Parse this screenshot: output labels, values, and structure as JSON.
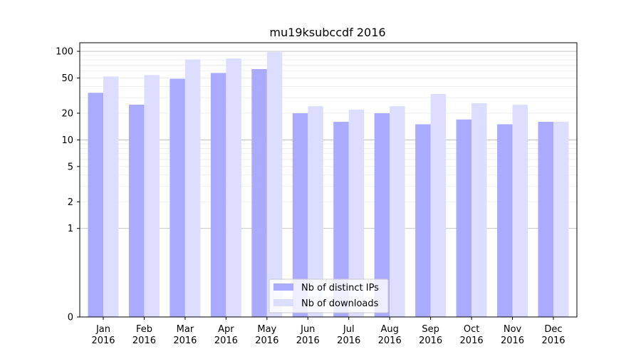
{
  "chart_data": {
    "type": "bar",
    "title": "mu19ksubccdf 2016",
    "xlabel": "",
    "ylabel": "",
    "yscale": "symlog",
    "yticks": [
      0,
      1,
      2,
      5,
      10,
      20,
      50,
      100
    ],
    "ytick_labels": [
      "0",
      "1",
      "2",
      "5",
      "10",
      "20",
      "50",
      "100"
    ],
    "ylim": [
      0,
      125
    ],
    "grid": "horizontal",
    "legend_position": "bottom-center",
    "categories": [
      [
        "Jan",
        "2016"
      ],
      [
        "Feb",
        "2016"
      ],
      [
        "Mar",
        "2016"
      ],
      [
        "Apr",
        "2016"
      ],
      [
        "May",
        "2016"
      ],
      [
        "Jun",
        "2016"
      ],
      [
        "Jul",
        "2016"
      ],
      [
        "Aug",
        "2016"
      ],
      [
        "Sep",
        "2016"
      ],
      [
        "Oct",
        "2016"
      ],
      [
        "Nov",
        "2016"
      ],
      [
        "Dec",
        "2016"
      ]
    ],
    "series": [
      {
        "name": "Nb of distinct IPs",
        "color": "#aaaaff",
        "values": [
          34,
          25,
          49,
          57,
          63,
          20,
          16,
          20,
          15,
          17,
          15,
          16
        ]
      },
      {
        "name": "Nb of downloads",
        "color": "#ddddff",
        "values": [
          52,
          54,
          81,
          83,
          98,
          24,
          22,
          24,
          33,
          26,
          25,
          16
        ]
      }
    ]
  }
}
